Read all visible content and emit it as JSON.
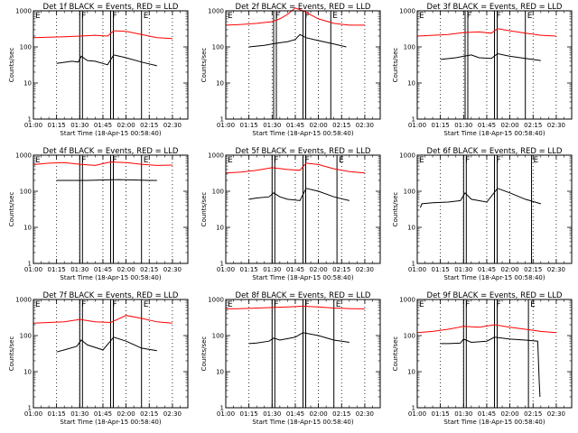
{
  "page": {
    "colors": {
      "events": "#000000",
      "lld": "#ff0000",
      "background": "#ffffff"
    }
  },
  "chart_data": [
    {
      "type": "line",
      "title": "Det 1f BLACK = Events, RED = LLD",
      "xlabel": "Start Time (18-Apr-15 00:58:40)",
      "ylabel": "Counts/sec",
      "ylog": true,
      "ylim": [
        1,
        1000
      ],
      "xlim": [
        "01:00",
        "02:40"
      ],
      "x_ticks": [
        "01:00",
        "01:15",
        "01:30",
        "01:45",
        "02:00",
        "02:15",
        "02:30"
      ],
      "y_ticks": [
        "1",
        "10",
        "100",
        "1000"
      ],
      "markers": [
        {
          "label": "E",
          "x": "01:00"
        },
        {
          "label": "F",
          "x": "01:30"
        },
        {
          "label": "F",
          "x": "01:50"
        },
        {
          "label": "E",
          "x": "02:10"
        }
      ],
      "series": [
        {
          "x": [
            "01:15",
            "01:25",
            "01:29",
            "01:31",
            "01:35",
            "01:40",
            "01:48",
            "01:52",
            "02:00",
            "02:10",
            "02:20"
          ],
          "values": [
            35,
            40,
            38,
            55,
            42,
            40,
            32,
            60,
            50,
            38,
            30
          ]
        },
        {
          "x": [
            "01:00",
            "01:10",
            "01:20",
            "01:30",
            "01:40",
            "01:48",
            "01:52",
            "02:00",
            "02:10",
            "02:20",
            "02:30"
          ],
          "values": [
            180,
            185,
            190,
            200,
            210,
            200,
            280,
            270,
            220,
            180,
            170
          ]
        }
      ]
    },
    {
      "type": "line",
      "title": "Det 2f BLACK = Events, RED = LLD",
      "xlabel": "Start Time (18-Apr-15 00:58:40)",
      "ylabel": "Counts/sec",
      "ylog": true,
      "ylim": [
        1,
        1000
      ],
      "xlim": [
        "01:00",
        "02:40"
      ],
      "x_ticks": [
        "01:00",
        "01:15",
        "01:30",
        "01:45",
        "02:00",
        "02:15",
        "02:30"
      ],
      "y_ticks": [
        "1",
        "10",
        "100",
        "1000"
      ],
      "markers": [
        {
          "label": "E",
          "x": "01:00"
        },
        {
          "label": "F",
          "x": "01:31"
        },
        {
          "label": "F",
          "x": "01:50"
        },
        {
          "label": "E",
          "x": "02:08"
        }
      ],
      "series": [
        {
          "x": [
            "01:15",
            "01:25",
            "01:30",
            "01:35",
            "01:40",
            "01:45",
            "01:48",
            "01:52",
            "02:00",
            "02:10",
            "02:18"
          ],
          "values": [
            100,
            110,
            120,
            130,
            140,
            160,
            220,
            180,
            150,
            120,
            100
          ]
        },
        {
          "x": [
            "01:00",
            "01:10",
            "01:20",
            "01:30",
            "01:35",
            "01:40",
            "01:45",
            "01:50",
            "02:00",
            "02:10",
            "02:20",
            "02:30"
          ],
          "values": [
            400,
            420,
            450,
            500,
            600,
            800,
            1200,
            1000,
            600,
            450,
            400,
            400
          ]
        }
      ]
    },
    {
      "type": "line",
      "title": "Det 3f BLACK = Events, RED = LLD",
      "xlabel": "Start Time (18-Apr-15 00:58:40)",
      "ylabel": "Counts/sec",
      "ylog": true,
      "ylim": [
        1,
        1000
      ],
      "xlim": [
        "01:00",
        "02:40"
      ],
      "x_ticks": [
        "01:00",
        "01:15",
        "01:30",
        "01:45",
        "02:00",
        "02:15",
        "02:30"
      ],
      "y_ticks": [
        "1",
        "10",
        "100",
        "1000"
      ],
      "markers": [
        {
          "label": "E",
          "x": "01:00"
        },
        {
          "label": "F",
          "x": "01:31"
        },
        {
          "label": "F",
          "x": "01:50"
        },
        {
          "label": "E",
          "x": "02:10"
        }
      ],
      "series": [
        {
          "x": [
            "01:15",
            "01:25",
            "01:30",
            "01:35",
            "01:40",
            "01:48",
            "01:52",
            "02:00",
            "02:10",
            "02:20"
          ],
          "values": [
            45,
            50,
            55,
            60,
            50,
            48,
            65,
            55,
            48,
            42
          ]
        },
        {
          "x": [
            "01:00",
            "01:10",
            "01:20",
            "01:30",
            "01:40",
            "01:48",
            "01:52",
            "02:00",
            "02:10",
            "02:20",
            "02:30"
          ],
          "values": [
            200,
            210,
            220,
            250,
            260,
            240,
            320,
            280,
            240,
            210,
            200
          ]
        }
      ]
    },
    {
      "type": "line",
      "title": "Det 4f BLACK = Events, RED = LLD",
      "xlabel": "Start Time (18-Apr-15 00:58:40)",
      "ylabel": "Counts/sec",
      "ylog": true,
      "ylim": [
        1,
        1000
      ],
      "xlim": [
        "01:00",
        "02:40"
      ],
      "x_ticks": [
        "01:00",
        "01:15",
        "01:30",
        "01:45",
        "02:00",
        "02:15",
        "02:30"
      ],
      "y_ticks": [
        "1",
        "10",
        "100",
        "1000"
      ],
      "markers": [
        {
          "label": "E",
          "x": "01:00"
        },
        {
          "label": "F",
          "x": "01:30"
        },
        {
          "label": "F",
          "x": "01:50"
        },
        {
          "label": "E",
          "x": "02:10"
        }
      ],
      "series": [
        {
          "x": [
            "01:15",
            "01:25",
            "01:35",
            "01:45",
            "01:55",
            "02:05",
            "02:15",
            "02:20"
          ],
          "values": [
            200,
            200,
            200,
            205,
            210,
            205,
            200,
            200
          ]
        },
        {
          "x": [
            "01:00",
            "01:10",
            "01:20",
            "01:30",
            "01:40",
            "01:50",
            "02:00",
            "02:10",
            "02:20",
            "02:30"
          ],
          "values": [
            550,
            600,
            620,
            560,
            520,
            650,
            620,
            560,
            520,
            530
          ]
        }
      ]
    },
    {
      "type": "line",
      "title": "Det 5f BLACK = Events, RED = LLD",
      "xlabel": "Start Time (18-Apr-15 00:58:40)",
      "ylabel": "Counts/sec",
      "ylog": true,
      "ylim": [
        1,
        1000
      ],
      "xlim": [
        "01:00",
        "02:40"
      ],
      "x_ticks": [
        "01:00",
        "01:15",
        "01:30",
        "01:45",
        "02:00",
        "02:15",
        "02:30"
      ],
      "y_ticks": [
        "1",
        "10",
        "100",
        "1000"
      ],
      "markers": [
        {
          "label": "E",
          "x": "01:00"
        },
        {
          "label": "F",
          "x": "01:30"
        },
        {
          "label": "F",
          "x": "01:50"
        },
        {
          "label": "E",
          "x": "02:12"
        }
      ],
      "series": [
        {
          "x": [
            "01:15",
            "01:20",
            "01:28",
            "01:31",
            "01:35",
            "01:40",
            "01:48",
            "01:52",
            "02:00",
            "02:10",
            "02:20"
          ],
          "values": [
            60,
            65,
            70,
            90,
            70,
            60,
            55,
            120,
            100,
            70,
            55
          ]
        },
        {
          "x": [
            "01:00",
            "01:10",
            "01:20",
            "01:30",
            "01:40",
            "01:48",
            "01:52",
            "02:00",
            "02:10",
            "02:20",
            "02:30"
          ],
          "values": [
            320,
            340,
            380,
            450,
            400,
            380,
            600,
            550,
            420,
            350,
            320
          ]
        }
      ]
    },
    {
      "type": "line",
      "title": "Det 6f BLACK = Events, RED = LLD",
      "xlabel": "Start Time (18-Apr-15 00:58:40)",
      "ylabel": "Counts/sec",
      "ylog": true,
      "ylim": [
        1,
        1000
      ],
      "xlim": [
        "01:00",
        "02:40"
      ],
      "x_ticks": [
        "01:00",
        "01:15",
        "01:30",
        "01:45",
        "02:00",
        "02:15",
        "02:30"
      ],
      "y_ticks": [
        "1",
        "10",
        "100",
        "1000"
      ],
      "markers": [
        {
          "label": "E",
          "x": "01:00"
        },
        {
          "label": "F",
          "x": "01:30"
        },
        {
          "label": "F",
          "x": "01:50"
        },
        {
          "label": "E",
          "x": "02:14"
        }
      ],
      "series": [
        {
          "x": [
            "01:02",
            "01:03",
            "01:10",
            "01:20",
            "01:28",
            "01:31",
            "01:35",
            "01:45",
            "01:52",
            "02:00",
            "02:10",
            "02:20"
          ],
          "values": [
            35,
            45,
            48,
            50,
            55,
            90,
            60,
            50,
            120,
            90,
            60,
            45
          ]
        }
      ]
    },
    {
      "type": "line",
      "title": "Det 7f BLACK = Events, RED = LLD",
      "xlabel": "Start Time (18-Apr-15 00:58:40)",
      "ylabel": "Counts/sec",
      "ylog": true,
      "ylim": [
        1,
        1000
      ],
      "xlim": [
        "01:00",
        "02:40"
      ],
      "x_ticks": [
        "01:00",
        "01:15",
        "01:30",
        "01:45",
        "02:00",
        "02:15",
        "02:30"
      ],
      "y_ticks": [
        "1",
        "10",
        "100",
        "1000"
      ],
      "markers": [
        {
          "label": "E",
          "x": "01:00"
        },
        {
          "label": "F",
          "x": "01:30"
        },
        {
          "label": "F",
          "x": "01:50"
        },
        {
          "label": "E",
          "x": "02:10"
        }
      ],
      "series": [
        {
          "x": [
            "01:15",
            "01:20",
            "01:28",
            "01:31",
            "01:35",
            "01:45",
            "01:52",
            "02:00",
            "02:10",
            "02:20"
          ],
          "values": [
            35,
            40,
            50,
            75,
            55,
            40,
            90,
            70,
            45,
            38
          ]
        },
        {
          "x": [
            "01:00",
            "01:10",
            "01:20",
            "01:30",
            "01:40",
            "01:50",
            "02:00",
            "02:10",
            "02:20",
            "02:30"
          ],
          "values": [
            220,
            230,
            240,
            280,
            240,
            230,
            360,
            300,
            240,
            220
          ]
        }
      ]
    },
    {
      "type": "line",
      "title": "Det 8f BLACK = Events, RED = LLD",
      "xlabel": "Start Time (18-Apr-15 00:58:40)",
      "ylabel": "Counts/sec",
      "ylog": true,
      "ylim": [
        1,
        1000
      ],
      "xlim": [
        "01:00",
        "02:40"
      ],
      "x_ticks": [
        "01:00",
        "01:15",
        "01:30",
        "01:45",
        "02:00",
        "02:15",
        "02:30"
      ],
      "y_ticks": [
        "1",
        "10",
        "100",
        "1000"
      ],
      "markers": [
        {
          "label": "E",
          "x": "01:00"
        },
        {
          "label": "F",
          "x": "01:30"
        },
        {
          "label": "F",
          "x": "01:50"
        },
        {
          "label": "E",
          "x": "02:10"
        }
      ],
      "series": [
        {
          "x": [
            "01:15",
            "01:20",
            "01:28",
            "01:31",
            "01:35",
            "01:45",
            "01:50",
            "02:00",
            "02:10",
            "02:20"
          ],
          "values": [
            60,
            62,
            70,
            85,
            75,
            90,
            120,
            100,
            75,
            65
          ]
        },
        {
          "x": [
            "01:00",
            "01:10",
            "01:20",
            "01:30",
            "01:40",
            "01:50",
            "02:00",
            "02:10",
            "02:20",
            "02:30"
          ],
          "values": [
            550,
            560,
            580,
            600,
            620,
            650,
            620,
            580,
            560,
            550
          ]
        }
      ]
    },
    {
      "type": "line",
      "title": "Det 9f BLACK = Events, RED = LLD",
      "xlabel": "Start Time (18-Apr-15 00:58:40)",
      "ylabel": "Counts/sec",
      "ylog": true,
      "ylim": [
        1,
        1000
      ],
      "xlim": [
        "01:00",
        "02:40"
      ],
      "x_ticks": [
        "01:00",
        "01:15",
        "01:30",
        "01:45",
        "02:00",
        "02:15",
        "02:30"
      ],
      "y_ticks": [
        "1",
        "10",
        "100",
        "1000"
      ],
      "markers": [
        {
          "label": "E",
          "x": "01:00"
        },
        {
          "label": "F",
          "x": "01:30"
        },
        {
          "label": "F",
          "x": "01:50"
        },
        {
          "label": "E",
          "x": "02:12"
        }
      ],
      "series": [
        {
          "x": [
            "01:15",
            "01:20",
            "01:28",
            "01:30",
            "01:35",
            "01:45",
            "01:50",
            "02:00",
            "02:10",
            "02:18",
            "02:19",
            "02:19.5"
          ],
          "values": [
            60,
            60,
            62,
            80,
            65,
            70,
            90,
            80,
            75,
            70,
            5,
            2
          ]
        },
        {
          "x": [
            "01:00",
            "01:10",
            "01:20",
            "01:30",
            "01:40",
            "01:50",
            "02:00",
            "02:10",
            "02:20",
            "02:30"
          ],
          "values": [
            120,
            130,
            150,
            180,
            170,
            200,
            170,
            150,
            130,
            120
          ]
        }
      ]
    }
  ]
}
